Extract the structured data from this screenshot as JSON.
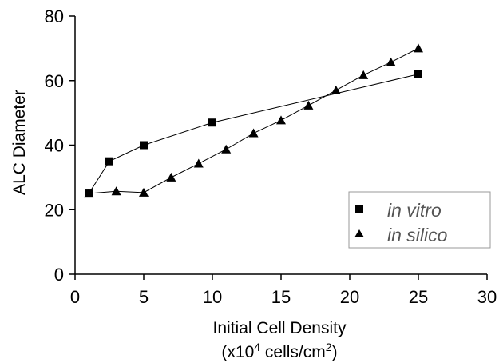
{
  "chart_data": {
    "type": "line",
    "title": "",
    "xlabel": "Initial Cell Density",
    "xlabel_unit": {
      "pre": "(x10",
      "sup1": "4",
      "mid": " cells/cm",
      "sup2": "2",
      "post": ")"
    },
    "ylabel": "ALC Diameter",
    "xlim": [
      0,
      30
    ],
    "ylim": [
      0,
      80
    ],
    "xticks": [
      "0",
      "5",
      "10",
      "15",
      "20",
      "25",
      "30"
    ],
    "yticks": [
      "0",
      "20",
      "40",
      "60",
      "80"
    ],
    "grid": false,
    "legend_position": "bottom-right",
    "series": [
      {
        "name": "in vitro",
        "marker": "square",
        "x": [
          1,
          2.5,
          5,
          10,
          25
        ],
        "y": [
          25,
          35,
          40,
          47,
          62
        ]
      },
      {
        "name": "in silico",
        "marker": "triangle",
        "x": [
          1,
          3,
          5,
          7,
          9,
          11,
          13,
          15,
          17,
          19,
          21,
          23,
          25
        ],
        "y": [
          25,
          25.7,
          25.3,
          30,
          34.3,
          38.7,
          43.7,
          47.7,
          52.3,
          57,
          61.7,
          65.7,
          70
        ]
      }
    ],
    "colors": {
      "line": "#000000",
      "marker": "#000000",
      "legend_text": "#555555"
    }
  }
}
